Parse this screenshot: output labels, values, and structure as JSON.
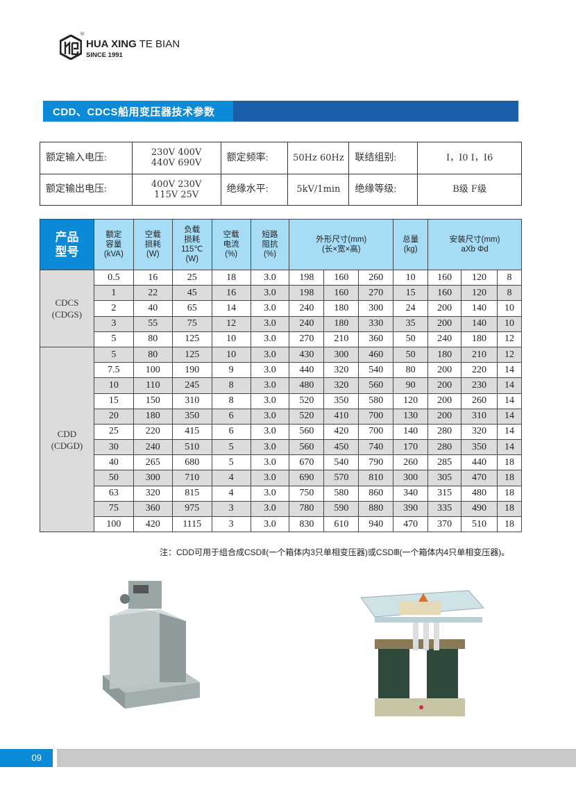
{
  "logo": {
    "brand_bold": "HUA XING",
    "brand_light": "TE BIAN",
    "since": "SINCE 1991",
    "reg": "®"
  },
  "title": "CDD、CDCS船用变压器技术参数",
  "params": [
    [
      {
        "label": "额定输入电压:",
        "value": [
          "230V 400V",
          "440V 690V"
        ]
      },
      {
        "label": "额定频率:",
        "value": [
          "50Hz 60Hz"
        ]
      },
      {
        "label": "联结组别:",
        "value": [
          "I，I0  I，I6"
        ]
      }
    ],
    [
      {
        "label": "额定输出电压:",
        "value": [
          "400V 230V",
          "115V 25V"
        ]
      },
      {
        "label": "绝缘水平:",
        "value": [
          "5kV/1min"
        ]
      },
      {
        "label": "绝缘等级:",
        "value": [
          "B级  F级"
        ]
      }
    ]
  ],
  "spec_table": {
    "headers": {
      "product": [
        "产品",
        "型号"
      ],
      "capacity": [
        "额定",
        "容量",
        "(kVA)"
      ],
      "noload_loss": [
        "空载",
        "损耗",
        "(W)"
      ],
      "load_loss": [
        "负载",
        "损耗",
        "115℃",
        "(W)"
      ],
      "noload_current": [
        "空载",
        "电流",
        "(%)"
      ],
      "impedance": [
        "短路",
        "阻抗",
        "(%)"
      ],
      "dimensions": [
        "外形尺寸(mm)",
        "(长×宽×高)"
      ],
      "weight": [
        "总量",
        "(kg)"
      ],
      "mounting": [
        "安装尺寸(mm)",
        "aXb    Φd"
      ]
    },
    "groups": [
      {
        "name": [
          "CDCS",
          "(CDGS)"
        ],
        "rows": [
          [
            "0.5",
            "16",
            "25",
            "18",
            "3.0",
            "198",
            "160",
            "260",
            "10",
            "160",
            "120",
            "8"
          ],
          [
            "1",
            "22",
            "45",
            "16",
            "3.0",
            "198",
            "160",
            "270",
            "15",
            "160",
            "120",
            "8"
          ],
          [
            "2",
            "40",
            "65",
            "14",
            "3.0",
            "240",
            "180",
            "300",
            "24",
            "200",
            "140",
            "10"
          ],
          [
            "3",
            "55",
            "75",
            "12",
            "3.0",
            "240",
            "180",
            "330",
            "35",
            "200",
            "140",
            "10"
          ],
          [
            "5",
            "80",
            "125",
            "10",
            "3.0",
            "270",
            "210",
            "360",
            "50",
            "240",
            "180",
            "12"
          ]
        ]
      },
      {
        "name": [
          "CDD",
          "(CDGD)"
        ],
        "rows": [
          [
            "5",
            "80",
            "125",
            "10",
            "3.0",
            "430",
            "300",
            "460",
            "50",
            "180",
            "210",
            "12"
          ],
          [
            "7.5",
            "100",
            "190",
            "9",
            "3.0",
            "440",
            "320",
            "540",
            "80",
            "200",
            "220",
            "14"
          ],
          [
            "10",
            "110",
            "245",
            "8",
            "3.0",
            "480",
            "320",
            "560",
            "90",
            "200",
            "230",
            "14"
          ],
          [
            "15",
            "150",
            "310",
            "8",
            "3.0",
            "520",
            "350",
            "580",
            "120",
            "200",
            "260",
            "14"
          ],
          [
            "20",
            "180",
            "350",
            "6",
            "3.0",
            "520",
            "410",
            "700",
            "130",
            "200",
            "310",
            "14"
          ],
          [
            "25",
            "220",
            "415",
            "6",
            "3.0",
            "560",
            "420",
            "700",
            "140",
            "280",
            "320",
            "14"
          ],
          [
            "30",
            "240",
            "510",
            "5",
            "3.0",
            "560",
            "450",
            "740",
            "170",
            "280",
            "350",
            "14"
          ],
          [
            "40",
            "265",
            "680",
            "5",
            "3.0",
            "670",
            "540",
            "790",
            "260",
            "285",
            "440",
            "18"
          ],
          [
            "50",
            "300",
            "710",
            "4",
            "3.0",
            "690",
            "570",
            "810",
            "300",
            "305",
            "470",
            "18"
          ],
          [
            "63",
            "320",
            "815",
            "4",
            "3.0",
            "750",
            "580",
            "860",
            "340",
            "315",
            "480",
            "18"
          ],
          [
            "75",
            "360",
            "975",
            "3",
            "3.0",
            "780",
            "590",
            "880",
            "390",
            "335",
            "490",
            "18"
          ],
          [
            "100",
            "420",
            "1115",
            "3",
            "3.0",
            "830",
            "610",
            "940",
            "470",
            "370",
            "510",
            "18"
          ]
        ]
      }
    ]
  },
  "note": "注：CDD可用于组合成CSDⅡ(一个箱体内3只单相变压器)或CSDⅢ(一个箱体内4只单相变压器)。",
  "page_number": "09",
  "colors": {
    "accent": "#0b8ad8",
    "dark_blue": "#1a60a8",
    "header_bg": "#a6dcf5",
    "row_grey": "#dcdcdc",
    "footer_grey": "#c8c9c8"
  }
}
